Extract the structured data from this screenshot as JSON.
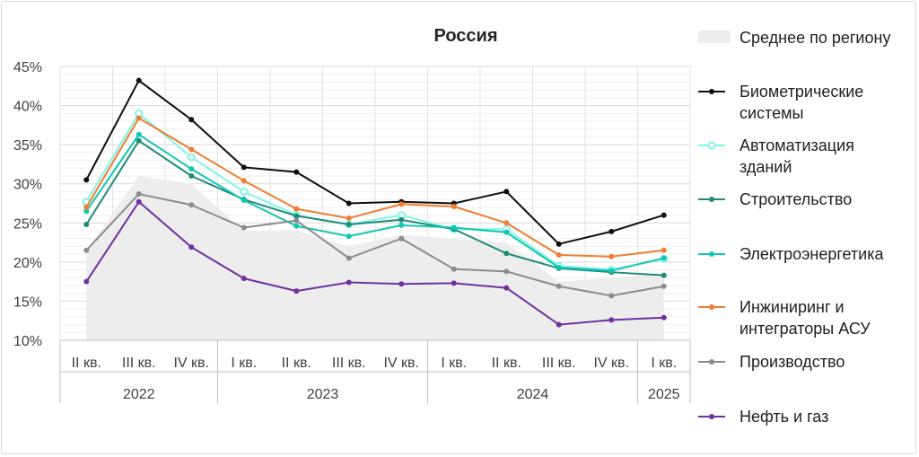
{
  "chart_data": {
    "type": "line",
    "title": "Россия",
    "ylim": [
      10,
      45
    ],
    "yticks": [
      "10%",
      "15%",
      "20%",
      "25%",
      "30%",
      "35%",
      "40%",
      "45%"
    ],
    "ytick_values": [
      10,
      15,
      20,
      25,
      30,
      35,
      40,
      45
    ],
    "categories": [
      "II кв.",
      "III кв.",
      "IV кв.",
      "I кв.",
      "II кв.",
      "III кв.",
      "IV кв.",
      "I кв.",
      "II кв.",
      "III кв.",
      "IV кв.",
      "I кв."
    ],
    "years": [
      {
        "label": "2022",
        "start": 0,
        "end": 2
      },
      {
        "label": "2023",
        "start": 3,
        "end": 6
      },
      {
        "label": "2024",
        "start": 7,
        "end": 10
      },
      {
        "label": "2025",
        "start": 11,
        "end": 11
      }
    ],
    "grid": true,
    "legend_position": "right",
    "area": {
      "name": "Среднее по региону",
      "color": "#ededed",
      "values": [
        21.5,
        31.0,
        30.0,
        24.0,
        24.0,
        22.0,
        23.5,
        23.0,
        22.5,
        17.5,
        18.0,
        18.5
      ]
    },
    "series": [
      {
        "name": "Биометрические системы",
        "legend_lines": [
          "Биометрические",
          "системы"
        ],
        "color": "#0d0d0d",
        "values": [
          30.5,
          43.2,
          38.2,
          32.1,
          31.5,
          27.5,
          27.7,
          27.5,
          29.0,
          22.3,
          23.9,
          26.0
        ]
      },
      {
        "name": "Автоматизация зданий",
        "legend_lines": [
          "Автоматизация",
          "зданий"
        ],
        "color": "#7ff5e4",
        "hollow": true,
        "values": [
          27.7,
          39.0,
          33.4,
          29.0,
          26.0,
          24.8,
          26.0,
          24.2,
          24.2,
          19.5,
          19.0,
          20.4
        ]
      },
      {
        "name": "Строительство",
        "legend_lines": [
          "Строительство"
        ],
        "color": "#1f8a78",
        "values": [
          24.8,
          35.5,
          31.0,
          28.0,
          25.9,
          24.8,
          25.4,
          24.2,
          21.1,
          19.2,
          18.7,
          18.3
        ]
      },
      {
        "name": "Электроэнергетика",
        "legend_lines": [
          "Электроэнергетика"
        ],
        "color": "#12c6b4",
        "values": [
          26.5,
          36.3,
          31.9,
          27.9,
          24.6,
          23.3,
          24.7,
          24.4,
          23.8,
          19.3,
          18.9,
          20.5
        ]
      },
      {
        "name": "Инжиниринг и интеграторы АСУ",
        "legend_lines": [
          "Инжиниринг и",
          "интеграторы АСУ"
        ],
        "color": "#ee7d31",
        "values": [
          27.0,
          38.4,
          34.4,
          30.4,
          26.8,
          25.6,
          27.4,
          27.1,
          25.0,
          20.9,
          20.7,
          21.5
        ]
      },
      {
        "name": "Производство",
        "legend_lines": [
          "Производство"
        ],
        "color": "#8c8c8c",
        "values": [
          21.5,
          28.7,
          27.3,
          24.4,
          25.3,
          20.5,
          23.0,
          19.1,
          18.8,
          16.9,
          15.7,
          16.9
        ]
      },
      {
        "name": "Нефть и газ",
        "legend_lines": [
          "Нефть и газ"
        ],
        "color": "#7030a0",
        "values": [
          17.5,
          27.7,
          21.9,
          17.9,
          16.3,
          17.4,
          17.2,
          17.3,
          16.7,
          12.0,
          12.6,
          12.9
        ]
      }
    ]
  }
}
